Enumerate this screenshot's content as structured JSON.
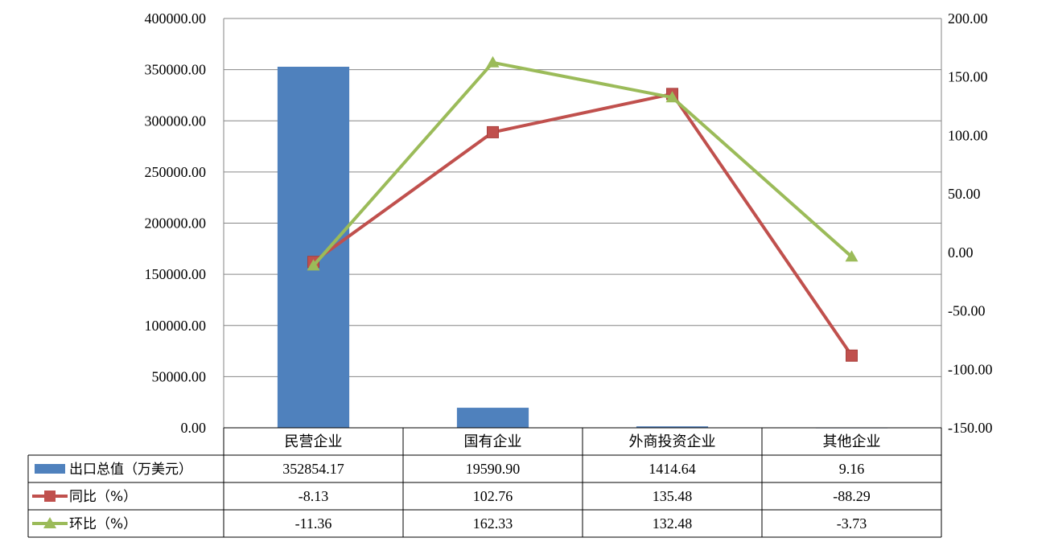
{
  "chart_data": {
    "type": "bar",
    "categories": [
      "民营企业",
      "国有企业",
      "外商投资企业",
      "其他企业"
    ],
    "left_axis": {
      "ticks": [
        "400000.00",
        "350000.00",
        "300000.00",
        "250000.00",
        "200000.00",
        "150000.00",
        "100000.00",
        "50000.00",
        "0.00"
      ],
      "ylim": [
        0,
        400000
      ]
    },
    "right_axis": {
      "ticks": [
        "200.00",
        "150.00",
        "100.00",
        "50.00",
        "0.00",
        "-50.00",
        "-100.00",
        "-150.00"
      ],
      "ylim": [
        -150,
        200
      ]
    },
    "series": [
      {
        "name": "出口总值（万美元）",
        "type": "bar",
        "axis": "left",
        "color": "#4F81BD",
        "values": [
          352854.17,
          19590.9,
          1414.64,
          9.16
        ],
        "labels": [
          "352854.17",
          "19590.90",
          "1414.64",
          "9.16"
        ]
      },
      {
        "name": "同比（%）",
        "type": "line",
        "marker": "square",
        "axis": "right",
        "color": "#C0504D",
        "values": [
          -8.13,
          102.76,
          135.48,
          -88.29
        ],
        "labels": [
          "-8.13",
          "102.76",
          "135.48",
          "-88.29"
        ]
      },
      {
        "name": "环比（%）",
        "type": "line",
        "marker": "triangle",
        "axis": "right",
        "color": "#9BBB59",
        "values": [
          -11.36,
          162.33,
          132.48,
          -3.73
        ],
        "labels": [
          "-11.36",
          "162.33",
          "132.48",
          "-3.73"
        ]
      }
    ],
    "grid": true,
    "legend": "data-table"
  }
}
